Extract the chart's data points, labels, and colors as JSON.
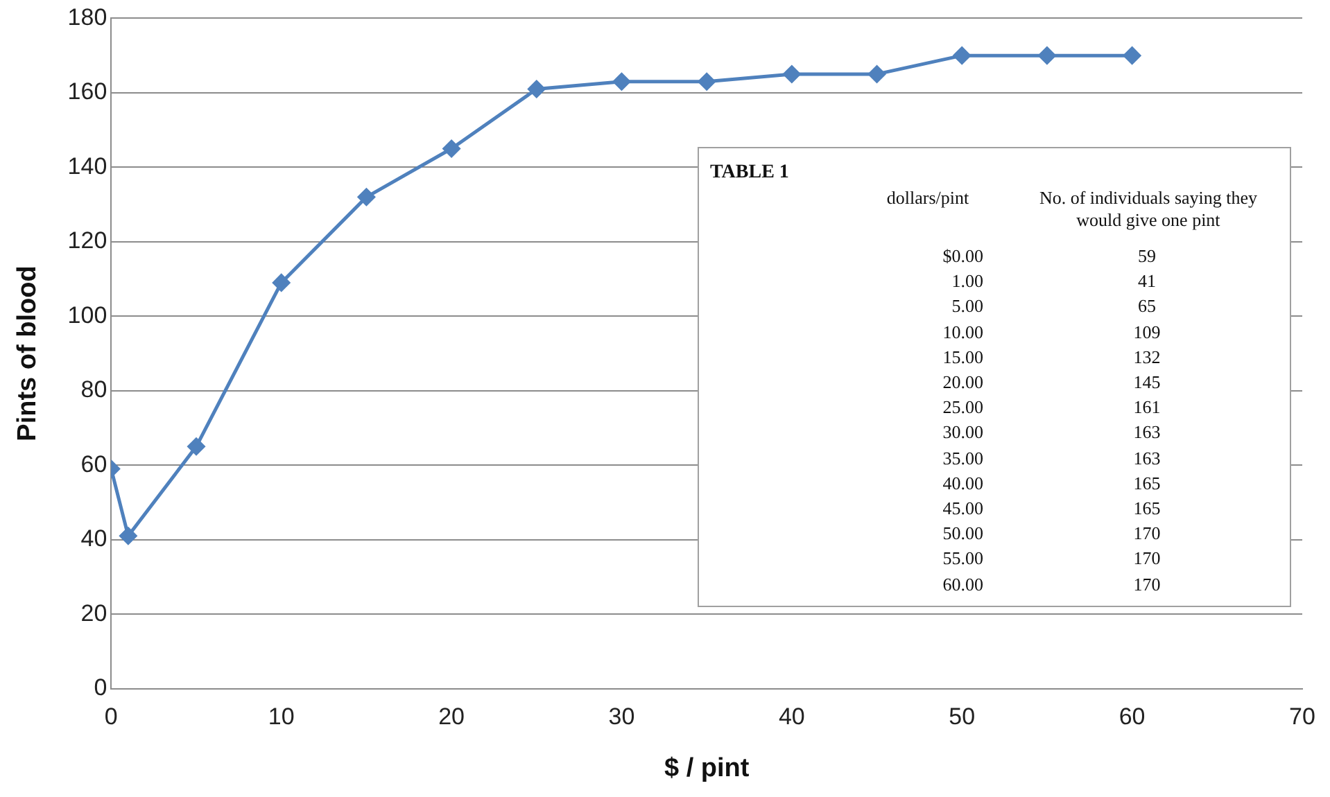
{
  "chart_data": {
    "type": "line",
    "xlabel": "$ / pint",
    "ylabel": "Pints of blood",
    "x": [
      0,
      1,
      5,
      10,
      15,
      20,
      25,
      30,
      35,
      40,
      45,
      50,
      55,
      60
    ],
    "series": [
      {
        "color": "#4f81bd",
        "values": [
          59,
          41,
          65,
          109,
          132,
          145,
          161,
          163,
          163,
          165,
          165,
          170,
          170,
          170
        ]
      }
    ],
    "xlim": [
      0,
      70
    ],
    "xticks": [
      0,
      10,
      20,
      30,
      40,
      50,
      60,
      70
    ],
    "ylim": [
      0,
      180
    ],
    "yticks": [
      0,
      20,
      40,
      60,
      80,
      100,
      120,
      140,
      160,
      180
    ],
    "grid": "y",
    "legend": false,
    "marker": "diamond",
    "line_style": "solid",
    "annotations": [
      "TABLE 1",
      "dollars/pint",
      "No. of individuals saying they would give one pint",
      "$0.00",
      "1.00",
      "5.00",
      "10.00",
      "15.00",
      "20.00",
      "25.00",
      "30.00",
      "35.00",
      "40.00",
      "45.00",
      "50.00",
      "55.00",
      "60.00",
      "59",
      "41",
      "65",
      "109",
      "132",
      "145",
      "161",
      "163",
      "163",
      "165",
      "165",
      "170",
      "170",
      "170"
    ]
  }
}
